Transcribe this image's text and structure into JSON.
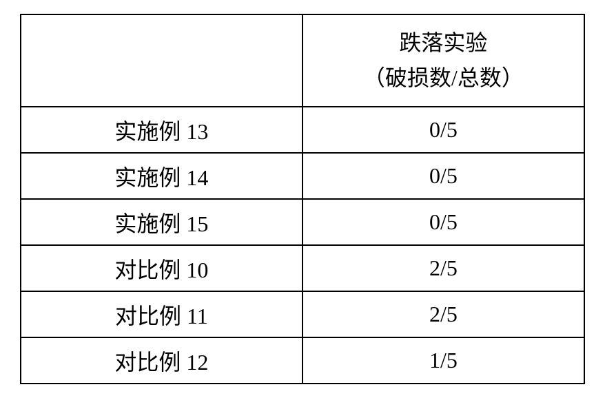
{
  "table": {
    "header": {
      "col1": "",
      "col2_line1": "跌落实验",
      "col2_line2": "（破损数/总数）"
    },
    "rows": [
      {
        "label": "实施例 13",
        "value": "0/5"
      },
      {
        "label": "实施例 14",
        "value": "0/5"
      },
      {
        "label": "实施例 15",
        "value": "0/5"
      },
      {
        "label": "对比例 10",
        "value": "2/5"
      },
      {
        "label": "对比例 11",
        "value": "2/5"
      },
      {
        "label": "对比例 12",
        "value": "1/5"
      }
    ],
    "styling": {
      "border_color": "#000000",
      "border_width": 2,
      "background_color": "#ffffff",
      "text_color": "#000000",
      "font_size": 32,
      "font_family": "SimSun",
      "col1_width": 410,
      "col2_width": 410,
      "header_row_height": 130,
      "data_row_height": 63,
      "num_data_rows": 6
    }
  }
}
